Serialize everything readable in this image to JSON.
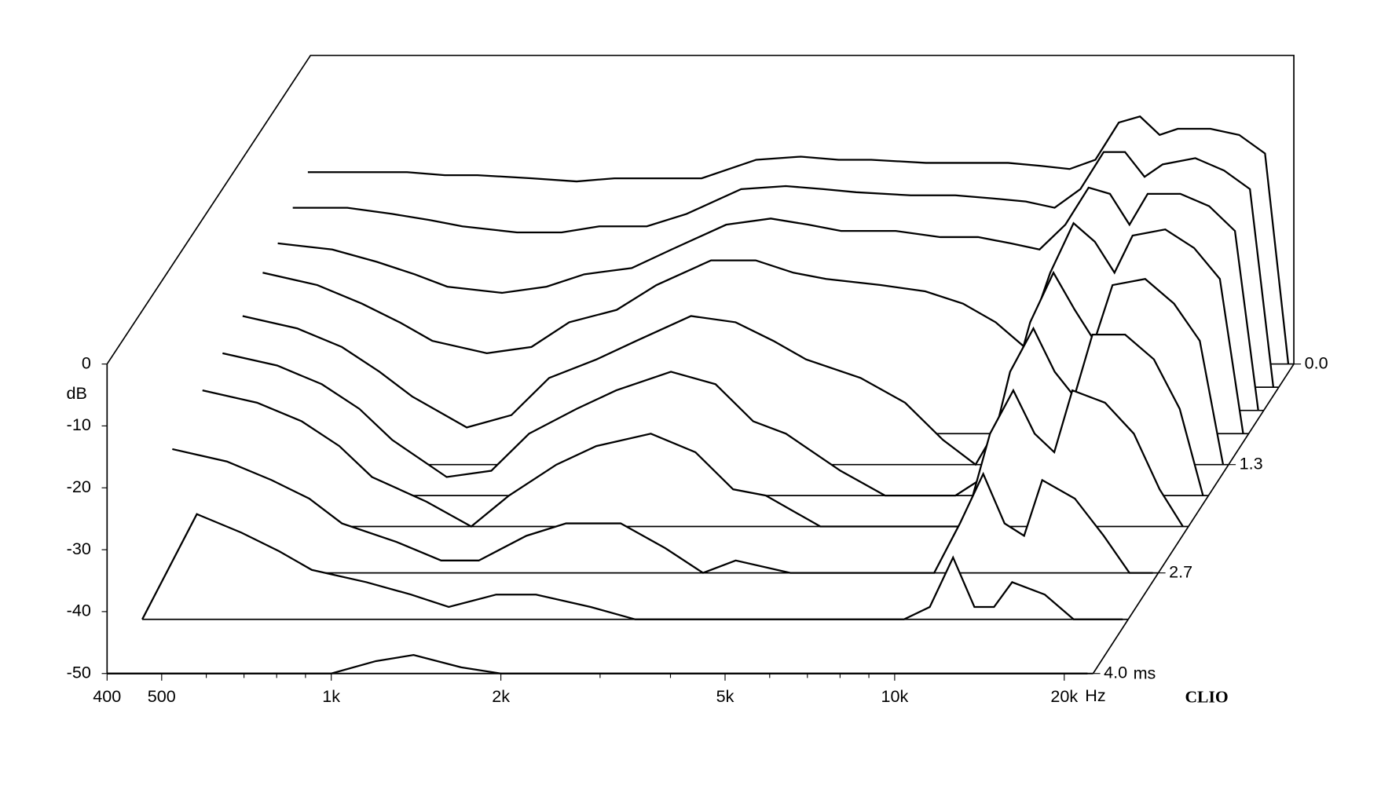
{
  "chart_data": {
    "type": "waterfall",
    "y_label": "dB",
    "x_unit": "Hz",
    "time_unit": "ms",
    "brand": "CLIO",
    "xlim": [
      400,
      22500
    ],
    "xticks": [
      400,
      500,
      {
        "value": 1000,
        "label": "1k"
      },
      {
        "value": 2000,
        "label": "2k"
      },
      {
        "value": 5000,
        "label": "5k"
      },
      {
        "value": 10000,
        "label": "10k"
      },
      {
        "value": 20000,
        "label": "20k"
      }
    ],
    "x_minor_ticks": [
      600,
      700,
      800,
      900,
      3000,
      4000,
      6000,
      7000,
      8000,
      9000
    ],
    "log_x": true,
    "ylim": [
      -50,
      0
    ],
    "yticks": [
      0,
      -10,
      -20,
      -30,
      -40,
      -50
    ],
    "tlim": [
      0,
      4
    ],
    "tticks": [
      {
        "value": 0,
        "label": "0.0"
      },
      1.3,
      2.7,
      {
        "value": 4,
        "label": "4.0"
      }
    ],
    "color": "#000000",
    "x": [
      400,
      500,
      600,
      700,
      800,
      1000,
      1200,
      1400,
      1700,
      2000,
      2500,
      3000,
      3500,
      4000,
      5000,
      6000,
      7000,
      8000,
      9000,
      10000,
      11000,
      12000,
      13000,
      14000,
      16000,
      18000,
      20000,
      22000
    ],
    "series": [
      {
        "time": 0.0,
        "values": [
          -19,
          -19,
          -19,
          -19.5,
          -19.5,
          -20,
          -20.5,
          -20,
          -20,
          -20,
          -17,
          -16.5,
          -17,
          -17,
          -17.5,
          -17.5,
          -17.5,
          -18,
          -18.5,
          -17,
          -11,
          -10,
          -13,
          -12,
          -12,
          -13,
          -16,
          -50
        ]
      },
      {
        "time": 0.3,
        "values": [
          -21,
          -21,
          -22,
          -23,
          -24,
          -25,
          -25,
          -24,
          -24,
          -22,
          -18,
          -17.5,
          -18,
          -18.5,
          -19,
          -19,
          -19.5,
          -20,
          -21,
          -18,
          -12,
          -12,
          -16,
          -14,
          -13,
          -15,
          -18,
          -50
        ]
      },
      {
        "time": 0.6,
        "values": [
          -23,
          -24,
          -26,
          -28,
          -30,
          -31,
          -30,
          -28,
          -27,
          -24,
          -20,
          -19,
          -20,
          -21,
          -21,
          -22,
          -22,
          -23,
          -24,
          -20,
          -14,
          -15,
          -20,
          -15,
          -15,
          -17,
          -21,
          -50
        ]
      },
      {
        "time": 0.9,
        "values": [
          -24,
          -26,
          -29,
          -32,
          -35,
          -37,
          -36,
          -32,
          -30,
          -26,
          -22,
          -22,
          -24,
          -25,
          -26,
          -27,
          -29,
          -32,
          -36,
          -24,
          -16,
          -19,
          -24,
          -18,
          -17,
          -20,
          -25,
          -50
        ]
      },
      {
        "time": 1.3,
        "values": [
          -26,
          -28,
          -31,
          -35,
          -39,
          -44,
          -42,
          -36,
          -33,
          -30,
          -26,
          -27,
          -30,
          -33,
          -36,
          -40,
          -46,
          -50,
          -42,
          -27,
          -19,
          -25,
          -30,
          -21,
          -20,
          -24,
          -30,
          -50
        ]
      },
      {
        "time": 1.7,
        "values": [
          -27,
          -29,
          -32,
          -36,
          -41,
          -47,
          -46,
          -40,
          -36,
          -33,
          -30,
          -32,
          -38,
          -40,
          -46,
          -50,
          -50,
          -50,
          -47,
          -30,
          -23,
          -30,
          -34,
          -24,
          -24,
          -28,
          -36,
          -50
        ]
      },
      {
        "time": 2.1,
        "values": [
          -28,
          -30,
          -33,
          -37,
          -42,
          -46,
          -50,
          -45,
          -40,
          -37,
          -35,
          -38,
          -44,
          -45,
          -50,
          -50,
          -50,
          -50,
          -50,
          -35,
          -28,
          -35,
          -38,
          -28,
          -30,
          -35,
          -44,
          -50
        ]
      },
      {
        "time": 2.7,
        "values": [
          -30,
          -32,
          -35,
          -38,
          -42,
          -45,
          -48,
          -48,
          -44,
          -42,
          -42,
          -46,
          -50,
          -48,
          -50,
          -50,
          -50,
          -50,
          -50,
          -42,
          -34,
          -42,
          -44,
          -35,
          -38,
          -44,
          -50,
          -50
        ]
      },
      {
        "time": 3.3,
        "values": [
          -50,
          -33,
          -36,
          -39,
          -42,
          -44,
          -46,
          -48,
          -46,
          -46,
          -48,
          -50,
          -50,
          -50,
          -50,
          -50,
          -50,
          -50,
          -50,
          -48,
          -40,
          -48,
          -48,
          -44,
          -46,
          -50,
          -50,
          -50
        ]
      },
      {
        "time": 4.0,
        "values": [
          -50,
          -50,
          -50,
          -50,
          -50,
          -50,
          -48,
          -47,
          -49,
          -50,
          -50,
          -50,
          -50,
          -50,
          -50,
          -50,
          -50,
          -50,
          -50,
          -50,
          -50,
          -50,
          -50,
          -50,
          -50,
          -50,
          -50,
          -50
        ]
      }
    ]
  }
}
